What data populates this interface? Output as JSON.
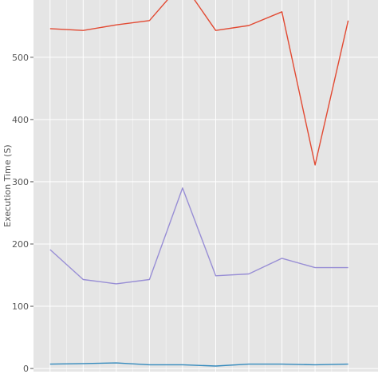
{
  "chart_data": {
    "type": "line",
    "title": "",
    "xlabel": "",
    "ylabel": "Execution Time (S)",
    "grid": true,
    "background": "#E5E5E5",
    "ylim": [
      -5,
      592
    ],
    "xlim": [
      0.5,
      10.9
    ],
    "y_ticks": [
      0,
      100,
      200,
      300,
      400,
      500
    ],
    "x_gridlines": [
      1,
      2,
      3,
      4,
      5,
      6,
      7,
      8,
      9,
      10
    ],
    "x": [
      1,
      2,
      3,
      4,
      5,
      6,
      7,
      8,
      9,
      10
    ],
    "series": [
      {
        "color": "#E24A33",
        "values": [
          546,
          543,
          552,
          559,
          620,
          543,
          551,
          573,
          327,
          559
        ]
      },
      {
        "color": "#988ED5",
        "values": [
          191,
          143,
          136,
          143,
          290,
          149,
          152,
          177,
          162,
          162
        ]
      },
      {
        "color": "#348ABD",
        "values": [
          7,
          8,
          9,
          6,
          6,
          4,
          7,
          7,
          6,
          7
        ]
      }
    ]
  }
}
